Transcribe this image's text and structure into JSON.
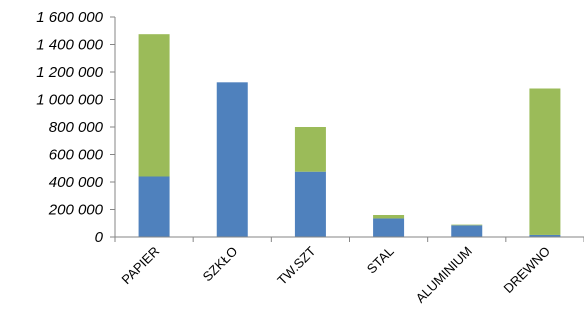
{
  "chart_data": {
    "type": "bar",
    "stacked": true,
    "categories": [
      "PAPIER",
      "SZKŁO",
      "TW.SZT",
      "STAL",
      "ALUMINIUM",
      "DREWNO"
    ],
    "series": [
      {
        "values": [
          440000,
          1125000,
          475000,
          135000,
          85000,
          15000
        ],
        "color": "#4F81BD"
      },
      {
        "values": [
          1035000,
          0,
          325000,
          25000,
          5000,
          1065000
        ],
        "color": "#9BBB59"
      }
    ],
    "ylim": [
      0,
      1600000
    ],
    "yticks": [
      0,
      200000,
      400000,
      600000,
      800000,
      1000000,
      1200000,
      1400000,
      1600000
    ],
    "ytick_labels": [
      "0",
      "200 000",
      "400 000",
      "600 000",
      "800 000",
      "1 000 000",
      "1 200 000",
      "1 400 000",
      "1 600 000"
    ],
    "grid": false,
    "legend": "none",
    "title": "",
    "xlabel": "",
    "ylabel": ""
  }
}
